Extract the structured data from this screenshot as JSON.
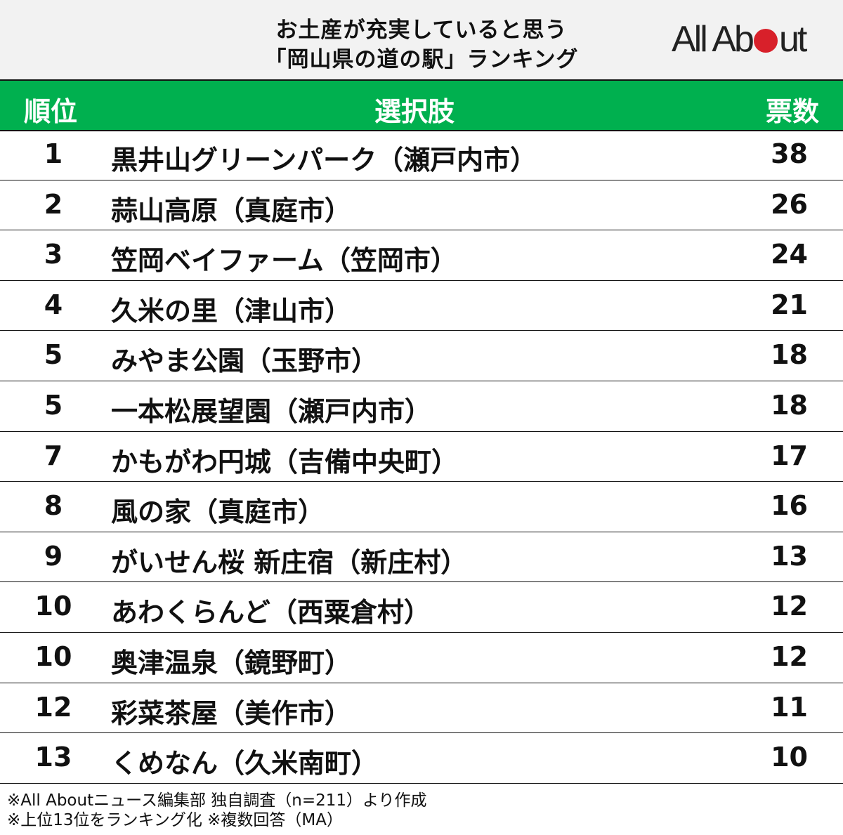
{
  "header": {
    "title_line1": "お土産が充実していると思う",
    "title_line2": "「岡山県の道の駅」ランキング",
    "logo": "All About"
  },
  "columns": {
    "rank": "順位",
    "choice": "選択肢",
    "votes": "票数"
  },
  "rows": [
    {
      "rank": "1",
      "name": "黒井山グリーンパーク（瀬戸内市）",
      "votes": "38"
    },
    {
      "rank": "2",
      "name": "蒜山高原（真庭市）",
      "votes": "26"
    },
    {
      "rank": "3",
      "name": "笠岡ベイファーム（笠岡市）",
      "votes": "24"
    },
    {
      "rank": "4",
      "name": "久米の里（津山市）",
      "votes": "21"
    },
    {
      "rank": "5",
      "name": "みやま公園（玉野市）",
      "votes": "18"
    },
    {
      "rank": "5",
      "name": "一本松展望園（瀬戸内市）",
      "votes": "18"
    },
    {
      "rank": "7",
      "name": "かもがわ円城（吉備中央町）",
      "votes": "17"
    },
    {
      "rank": "8",
      "name": "風の家（真庭市）",
      "votes": "16"
    },
    {
      "rank": "9",
      "name": "がいせん桜 新庄宿（新庄村）",
      "votes": "13"
    },
    {
      "rank": "10",
      "name": "あわくらんど（西粟倉村）",
      "votes": "12"
    },
    {
      "rank": "10",
      "name": "奥津温泉（鏡野町）",
      "votes": "12"
    },
    {
      "rank": "12",
      "name": "彩菜茶屋（美作市）",
      "votes": "11"
    },
    {
      "rank": "13",
      "name": "くめなん（久米南町）",
      "votes": "10"
    }
  ],
  "footer": {
    "line1": "※All Aboutニュース編集部 独自調査（n=211）より作成",
    "line2": "※上位13位をランキング化 ※複数回答（MA）"
  },
  "colors": {
    "header_green": "#00b04f",
    "logo_red": "#d8202a"
  }
}
